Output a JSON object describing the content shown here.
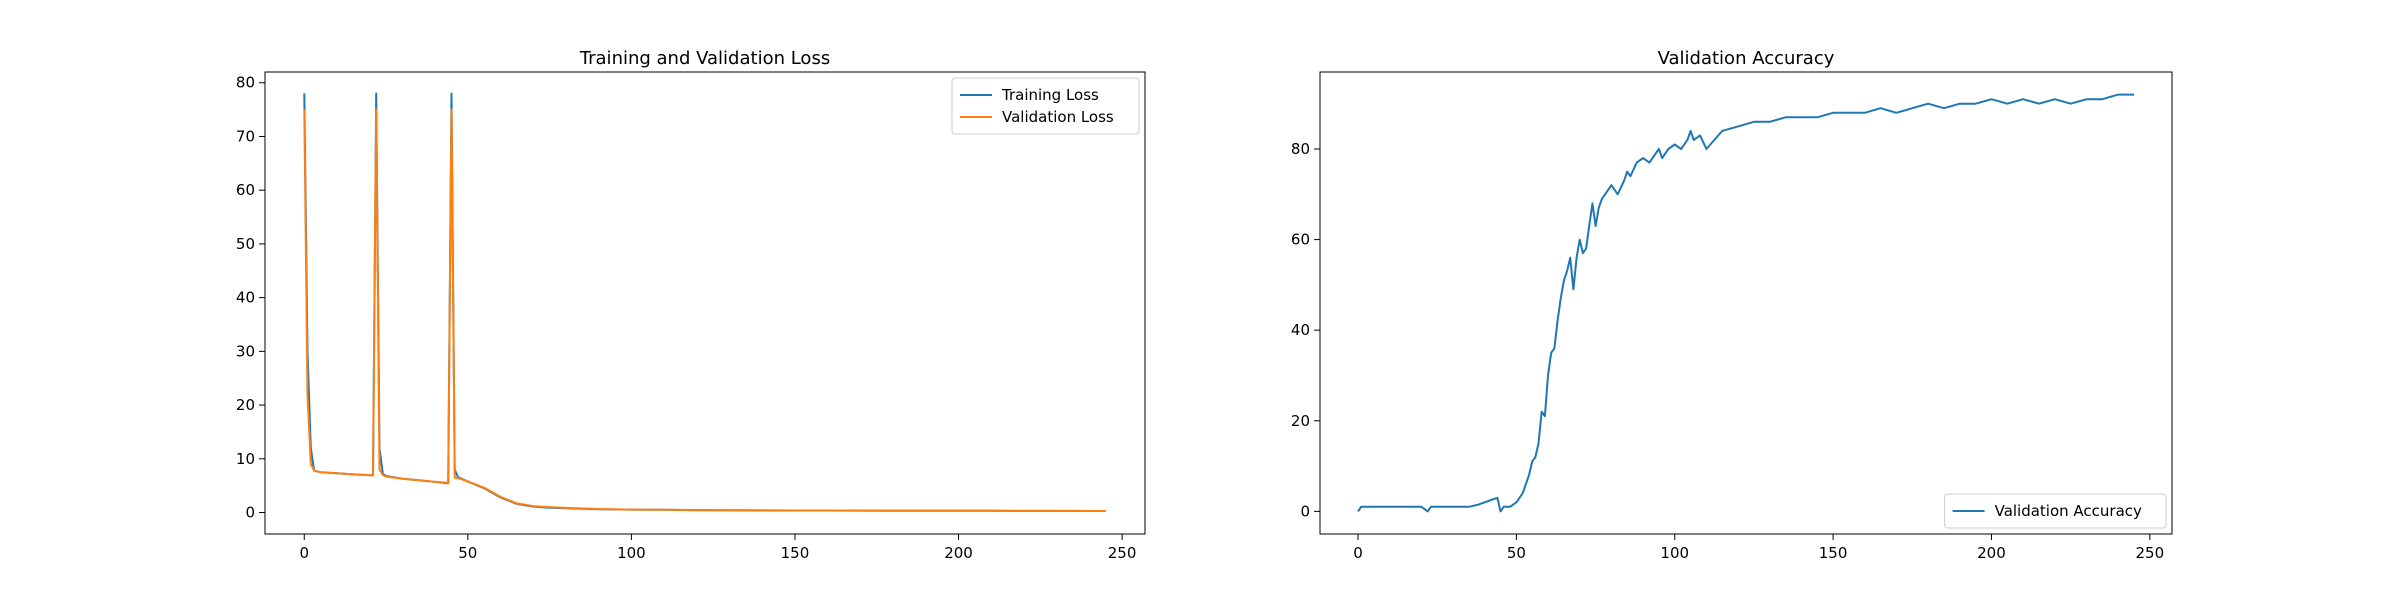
{
  "chart_data": [
    {
      "type": "line",
      "title": "Training and Validation Loss",
      "xlabel": "",
      "ylabel": "",
      "xlim": [
        -12,
        257
      ],
      "ylim": [
        -4,
        82
      ],
      "xticks": [
        0,
        50,
        100,
        150,
        200,
        250
      ],
      "yticks": [
        0,
        10,
        20,
        30,
        40,
        50,
        60,
        70,
        80
      ],
      "grid": false,
      "legend": "top-right",
      "series": [
        {
          "name": "Training Loss",
          "color": "#1f77b4",
          "x": [
            0,
            1,
            2,
            3,
            5,
            10,
            15,
            21,
            22,
            23,
            24,
            25,
            30,
            35,
            40,
            44,
            45,
            46,
            47,
            48,
            50,
            55,
            60,
            65,
            70,
            75,
            80,
            90,
            100,
            110,
            120,
            130,
            140,
            150,
            160,
            170,
            180,
            190,
            200,
            210,
            220,
            230,
            240,
            245
          ],
          "y": [
            78,
            30,
            12,
            7.8,
            7.5,
            7.3,
            7.1,
            6.9,
            78,
            12,
            7.2,
            6.8,
            6.3,
            6.0,
            5.7,
            5.5,
            78,
            8,
            6.6,
            6.3,
            5.8,
            4.5,
            2.8,
            1.6,
            1.1,
            0.9,
            0.8,
            0.6,
            0.55,
            0.5,
            0.45,
            0.42,
            0.4,
            0.38,
            0.37,
            0.35,
            0.34,
            0.33,
            0.32,
            0.31,
            0.3,
            0.3,
            0.29,
            0.28
          ]
        },
        {
          "name": "Validation Loss",
          "color": "#ff7f0e",
          "x": [
            0,
            1,
            2,
            3,
            5,
            10,
            15,
            21,
            22,
            23,
            24,
            25,
            30,
            35,
            40,
            44,
            45,
            46,
            47,
            48,
            50,
            55,
            60,
            65,
            70,
            75,
            80,
            90,
            100,
            110,
            120,
            130,
            140,
            150,
            160,
            170,
            180,
            190,
            200,
            210,
            220,
            230,
            240,
            245
          ],
          "y": [
            75,
            22,
            9,
            7.8,
            7.5,
            7.3,
            7.1,
            6.9,
            75,
            8,
            7.0,
            6.7,
            6.3,
            6.0,
            5.7,
            5.4,
            75,
            6.5,
            6.4,
            6.2,
            5.8,
            4.6,
            2.9,
            1.7,
            1.2,
            1.0,
            0.85,
            0.65,
            0.55,
            0.5,
            0.45,
            0.42,
            0.4,
            0.38,
            0.37,
            0.35,
            0.34,
            0.33,
            0.32,
            0.31,
            0.3,
            0.3,
            0.29,
            0.28
          ]
        }
      ]
    },
    {
      "type": "line",
      "title": "Validation Accuracy",
      "xlabel": "",
      "ylabel": "",
      "xlim": [
        -12,
        257
      ],
      "ylim": [
        -5,
        97
      ],
      "xticks": [
        0,
        50,
        100,
        150,
        200,
        250
      ],
      "yticks": [
        0,
        20,
        40,
        60,
        80
      ],
      "grid": false,
      "legend": "bottom-right",
      "series": [
        {
          "name": "Validation Accuracy",
          "color": "#1f77b4",
          "x": [
            0,
            1,
            2,
            5,
            10,
            15,
            20,
            21,
            22,
            23,
            25,
            30,
            35,
            38,
            40,
            42,
            44,
            45,
            46,
            48,
            50,
            52,
            54,
            55,
            56,
            57,
            58,
            59,
            60,
            61,
            62,
            63,
            64,
            65,
            66,
            67,
            68,
            69,
            70,
            71,
            72,
            73,
            74,
            75,
            76,
            77,
            78,
            79,
            80,
            82,
            84,
            85,
            86,
            88,
            90,
            92,
            94,
            95,
            96,
            98,
            100,
            102,
            104,
            105,
            106,
            108,
            110,
            115,
            120,
            125,
            130,
            135,
            140,
            145,
            150,
            155,
            160,
            165,
            170,
            175,
            180,
            185,
            190,
            195,
            200,
            205,
            210,
            215,
            220,
            225,
            230,
            235,
            240,
            245
          ],
          "y": [
            0,
            1,
            1,
            1,
            1,
            1,
            1,
            0.5,
            0,
            1,
            1,
            1,
            1,
            1.5,
            2,
            2.5,
            3,
            0,
            1,
            1,
            2,
            4,
            8,
            11,
            12,
            15,
            22,
            21,
            30,
            35,
            36,
            42,
            47,
            51,
            53,
            56,
            49,
            56,
            60,
            57,
            58,
            63,
            68,
            63,
            67,
            69,
            70,
            71,
            72,
            70,
            73,
            75,
            74,
            77,
            78,
            77,
            79,
            80,
            78,
            80,
            81,
            80,
            82,
            84,
            82,
            83,
            80,
            84,
            85,
            86,
            86,
            87,
            87,
            87,
            88,
            88,
            88,
            89,
            88,
            89,
            90,
            89,
            90,
            90,
            91,
            90,
            91,
            90,
            91,
            90,
            91,
            91,
            92,
            92
          ]
        }
      ]
    }
  ]
}
